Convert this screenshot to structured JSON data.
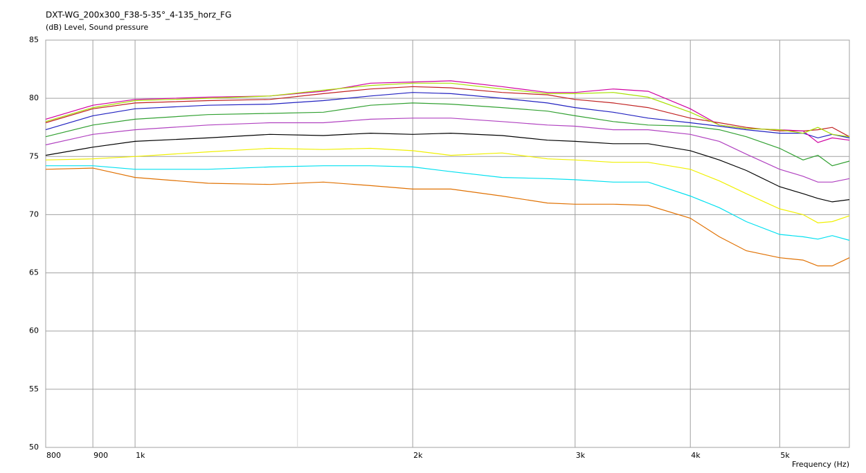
{
  "chart_data": {
    "type": "line",
    "title": "DXT-WG_200x300_F38-5-35°_4-135_horz_FG",
    "subtitle": "(dB)  Level, Sound pressure",
    "x_label": "Frequency  (Hz)",
    "x_log": true,
    "grid": true,
    "xlim": [
      800,
      5950
    ],
    "ylim": [
      50,
      85
    ],
    "xticks": [
      800,
      900,
      {
        "value": 1000,
        "label": "1k"
      },
      {
        "value": 2000,
        "label": "2k"
      },
      {
        "value": 3000,
        "label": "3k"
      },
      {
        "value": 4000,
        "label": "4k"
      },
      {
        "value": 5000,
        "label": "5k"
      }
    ],
    "minor_xticks": [
      1500
    ],
    "yticks": [
      50,
      55,
      60,
      65,
      70,
      75,
      80,
      85
    ],
    "x": [
      800,
      900,
      1000,
      1200,
      1400,
      1600,
      1800,
      2000,
      2200,
      2500,
      2800,
      3000,
      3300,
      3600,
      4000,
      4300,
      4600,
      5000,
      5300,
      5500,
      5700,
      5950
    ],
    "series": [
      {
        "color": "#e07000",
        "values": [
          73.9,
          74.0,
          73.2,
          72.7,
          72.6,
          72.8,
          72.5,
          72.2,
          72.2,
          71.6,
          71.0,
          70.9,
          70.9,
          70.8,
          69.7,
          68.1,
          66.9,
          66.3,
          66.1,
          65.6,
          65.6,
          66.3
        ]
      },
      {
        "color": "#00e0f0",
        "values": [
          74.2,
          74.2,
          73.9,
          73.9,
          74.1,
          74.2,
          74.2,
          74.1,
          73.7,
          73.2,
          73.1,
          73.0,
          72.8,
          72.8,
          71.6,
          70.6,
          69.4,
          68.3,
          68.1,
          67.9,
          68.2,
          67.8
        ]
      },
      {
        "color": "#f0f000",
        "values": [
          74.7,
          74.8,
          75.0,
          75.4,
          75.7,
          75.6,
          75.7,
          75.5,
          75.1,
          75.3,
          74.8,
          74.7,
          74.5,
          74.5,
          73.9,
          72.9,
          71.8,
          70.5,
          70.0,
          69.3,
          69.4,
          69.9
        ]
      },
      {
        "color": "#000000",
        "values": [
          75.1,
          75.8,
          76.3,
          76.6,
          76.9,
          76.8,
          77.0,
          76.9,
          77.0,
          76.8,
          76.4,
          76.3,
          76.1,
          76.1,
          75.5,
          74.7,
          73.8,
          72.4,
          71.8,
          71.4,
          71.1,
          71.3
        ]
      },
      {
        "color": "#b040c0",
        "values": [
          76.0,
          76.9,
          77.3,
          77.7,
          77.9,
          77.9,
          78.2,
          78.3,
          78.3,
          78.0,
          77.7,
          77.6,
          77.3,
          77.3,
          76.9,
          76.3,
          75.2,
          73.9,
          73.3,
          72.8,
          72.8,
          73.1
        ]
      },
      {
        "color": "#30a030",
        "values": [
          76.7,
          77.7,
          78.2,
          78.6,
          78.7,
          78.8,
          79.4,
          79.6,
          79.5,
          79.2,
          78.9,
          78.5,
          78.0,
          77.7,
          77.6,
          77.3,
          76.7,
          75.7,
          74.7,
          75.1,
          74.2,
          74.6
        ]
      },
      {
        "color": "#2020c0",
        "values": [
          77.3,
          78.5,
          79.1,
          79.4,
          79.5,
          79.8,
          80.2,
          80.5,
          80.4,
          80.0,
          79.6,
          79.2,
          78.8,
          78.3,
          77.9,
          77.6,
          77.3,
          77.0,
          77.0,
          76.6,
          76.9,
          76.6
        ]
      },
      {
        "color": "#c02020",
        "values": [
          77.9,
          79.1,
          79.6,
          79.8,
          79.9,
          80.4,
          80.8,
          81.0,
          80.9,
          80.5,
          80.3,
          79.9,
          79.6,
          79.2,
          78.3,
          77.9,
          77.5,
          77.2,
          77.2,
          77.3,
          77.5,
          76.7
        ]
      },
      {
        "color": "#d000a0",
        "values": [
          78.2,
          79.4,
          79.9,
          80.1,
          80.2,
          80.6,
          81.3,
          81.4,
          81.5,
          81.0,
          80.5,
          80.5,
          80.8,
          80.6,
          79.1,
          77.7,
          77.4,
          77.3,
          77.2,
          76.2,
          76.6,
          76.4
        ]
      },
      {
        "color": "#a8e000",
        "values": [
          78.0,
          79.2,
          79.8,
          80.0,
          80.2,
          80.7,
          81.1,
          81.3,
          81.3,
          80.8,
          80.4,
          80.4,
          80.5,
          80.1,
          78.8,
          77.7,
          77.4,
          77.3,
          77.0,
          77.5,
          76.9,
          76.7
        ]
      }
    ]
  }
}
